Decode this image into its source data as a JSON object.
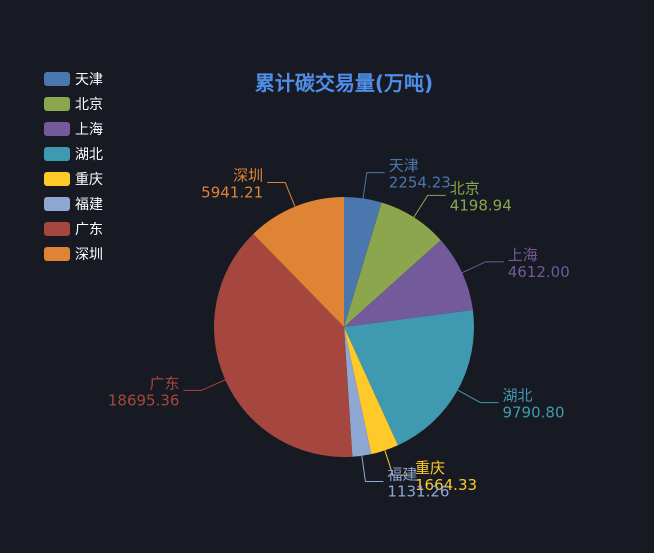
{
  "chart_data": {
    "type": "pie",
    "title": "累计碳交易量(万吨)",
    "categories": [
      "天津",
      "北京",
      "上海",
      "湖北",
      "重庆",
      "福建",
      "广东",
      "深圳"
    ],
    "values": [
      2254.23,
      4198.94,
      4612.0,
      9790.8,
      1664.33,
      1131.26,
      18695.36,
      5941.21
    ],
    "value_labels": [
      "2254.23",
      "4198.94",
      "4612.00",
      "9790.80",
      "1664.33",
      "1131.26",
      "18695.36",
      "5941.21"
    ],
    "colors": [
      "#4a77ae",
      "#8ba64c",
      "#735a9a",
      "#3f9ab1",
      "#fdca2a",
      "#8fa7d3",
      "#a5473f",
      "#de8434"
    ],
    "title_color": "#4f8ee8",
    "legend_text_color": "#ffffff",
    "background": "#171a22",
    "start_angle_deg": 0,
    "direction": "clockwise",
    "legend": "top-left"
  }
}
